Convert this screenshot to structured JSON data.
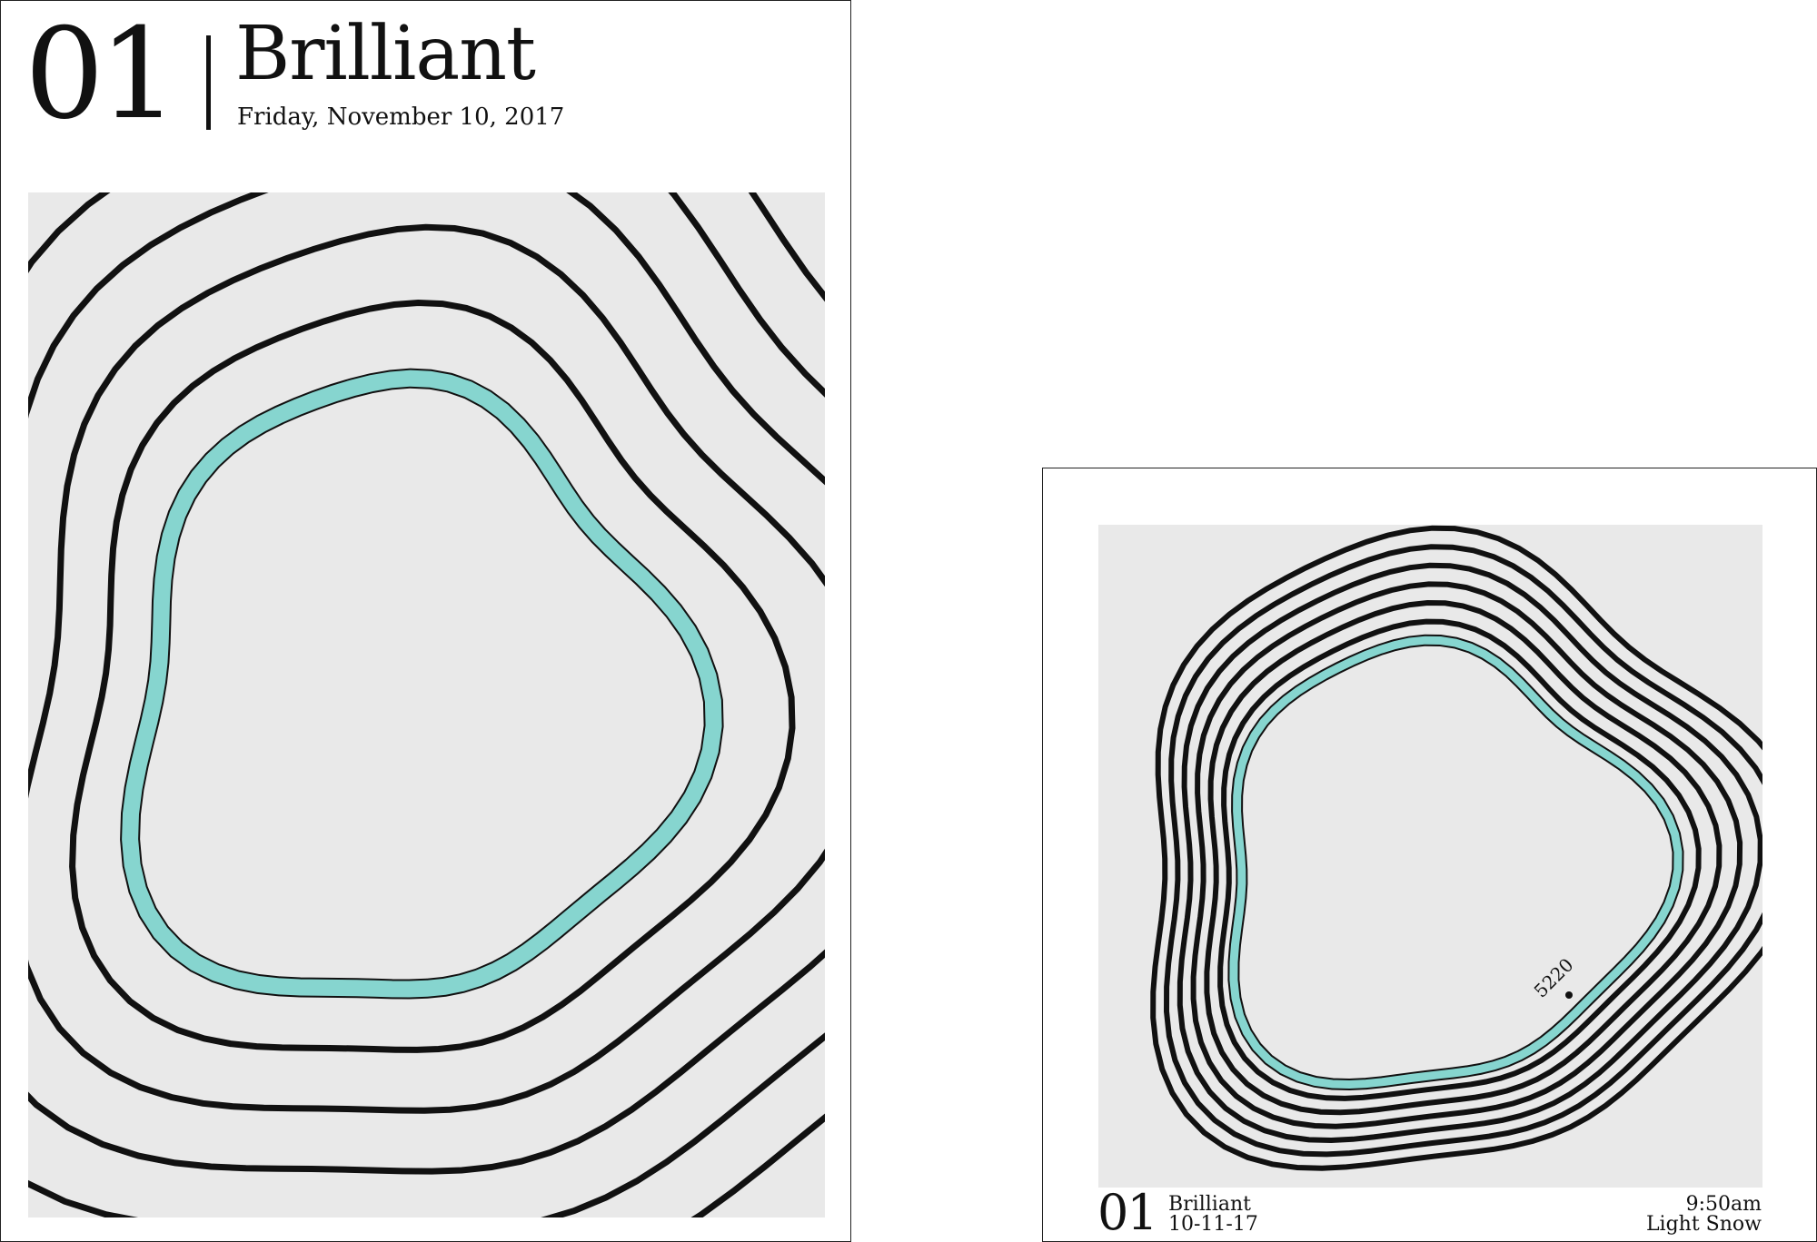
{
  "colors": {
    "page_background": "#ffffff",
    "art_background": "#e9e9e9",
    "contour_stroke": "#111111",
    "highlight_contour": "#86d5cf"
  },
  "poster_large": {
    "number": "01",
    "title": "Brilliant",
    "date": "Friday, November 10, 2017",
    "contour_count": 6,
    "highlighted_contour_index": 0
  },
  "poster_small": {
    "number": "01",
    "name": "Brilliant",
    "date": "10-11-17",
    "time": "9:50am",
    "weather": "Light Snow",
    "elevation_label": "5220",
    "contour_count": 7,
    "highlighted_contour_index": 0
  }
}
